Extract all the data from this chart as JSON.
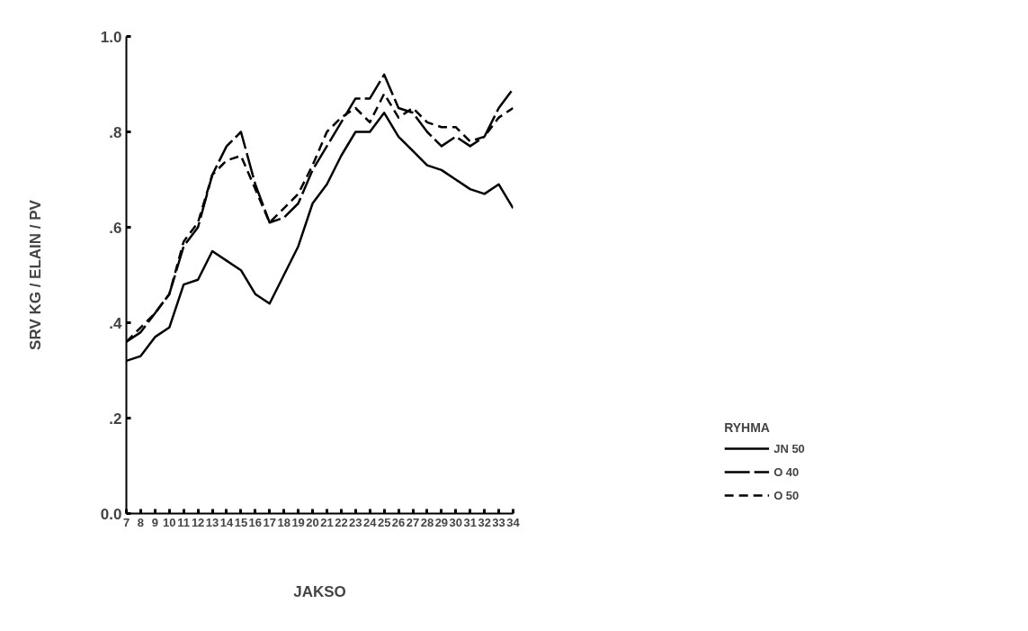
{
  "chart_data": {
    "type": "line",
    "xlabel": "JAKSO",
    "ylabel": "SRV KG / ELAIN / PV",
    "legend_title": "RYHMA",
    "x": [
      7,
      8,
      9,
      10,
      11,
      12,
      13,
      14,
      15,
      16,
      17,
      18,
      19,
      20,
      21,
      22,
      23,
      24,
      25,
      26,
      27,
      28,
      29,
      30,
      31,
      32,
      33,
      34
    ],
    "xlim": [
      7,
      34
    ],
    "xticks": [
      7,
      8,
      9,
      10,
      11,
      12,
      13,
      14,
      15,
      16,
      17,
      18,
      19,
      20,
      21,
      22,
      23,
      24,
      25,
      26,
      27,
      28,
      29,
      30,
      31,
      32,
      33,
      34
    ],
    "ylim": [
      0,
      1.0
    ],
    "yticks": [
      {
        "value": 0,
        "label": "0.0"
      },
      {
        "value": 0.2,
        "label": ".2"
      },
      {
        "value": 0.4,
        "label": ".4"
      },
      {
        "value": 0.6,
        "label": ".6"
      },
      {
        "value": 0.8,
        "label": ".8"
      },
      {
        "value": 1.0,
        "label": "1.0"
      }
    ],
    "grid": false,
    "legend": "bottom right",
    "marker": "none",
    "series": [
      {
        "name": "JN 50",
        "color": "#000000",
        "line_style": "solid",
        "values": [
          0.32,
          0.33,
          0.37,
          0.39,
          0.48,
          0.49,
          0.55,
          0.53,
          0.51,
          0.46,
          0.44,
          0.5,
          0.56,
          0.65,
          0.69,
          0.75,
          0.8,
          0.8,
          0.84,
          0.79,
          0.76,
          0.73,
          0.72,
          0.7,
          0.68,
          0.67,
          0.69,
          0.64
        ]
      },
      {
        "name": "O 40",
        "color": "#000000",
        "line_style": "longdash",
        "values": [
          0.36,
          0.38,
          0.42,
          0.46,
          0.56,
          0.6,
          0.71,
          0.77,
          0.8,
          0.69,
          0.61,
          0.62,
          0.65,
          0.72,
          0.77,
          0.82,
          0.87,
          0.87,
          0.92,
          0.85,
          0.84,
          0.8,
          0.77,
          0.79,
          0.77,
          0.79,
          0.85,
          0.89
        ]
      },
      {
        "name": "O 50",
        "color": "#000000",
        "line_style": "dashed",
        "values": [
          0.36,
          0.39,
          0.42,
          0.46,
          0.57,
          0.61,
          0.71,
          0.74,
          0.75,
          0.68,
          0.61,
          0.64,
          0.67,
          0.73,
          0.8,
          0.83,
          0.85,
          0.82,
          0.88,
          0.83,
          0.85,
          0.82,
          0.81,
          0.81,
          0.78,
          0.79,
          0.83,
          0.85
        ]
      }
    ]
  }
}
